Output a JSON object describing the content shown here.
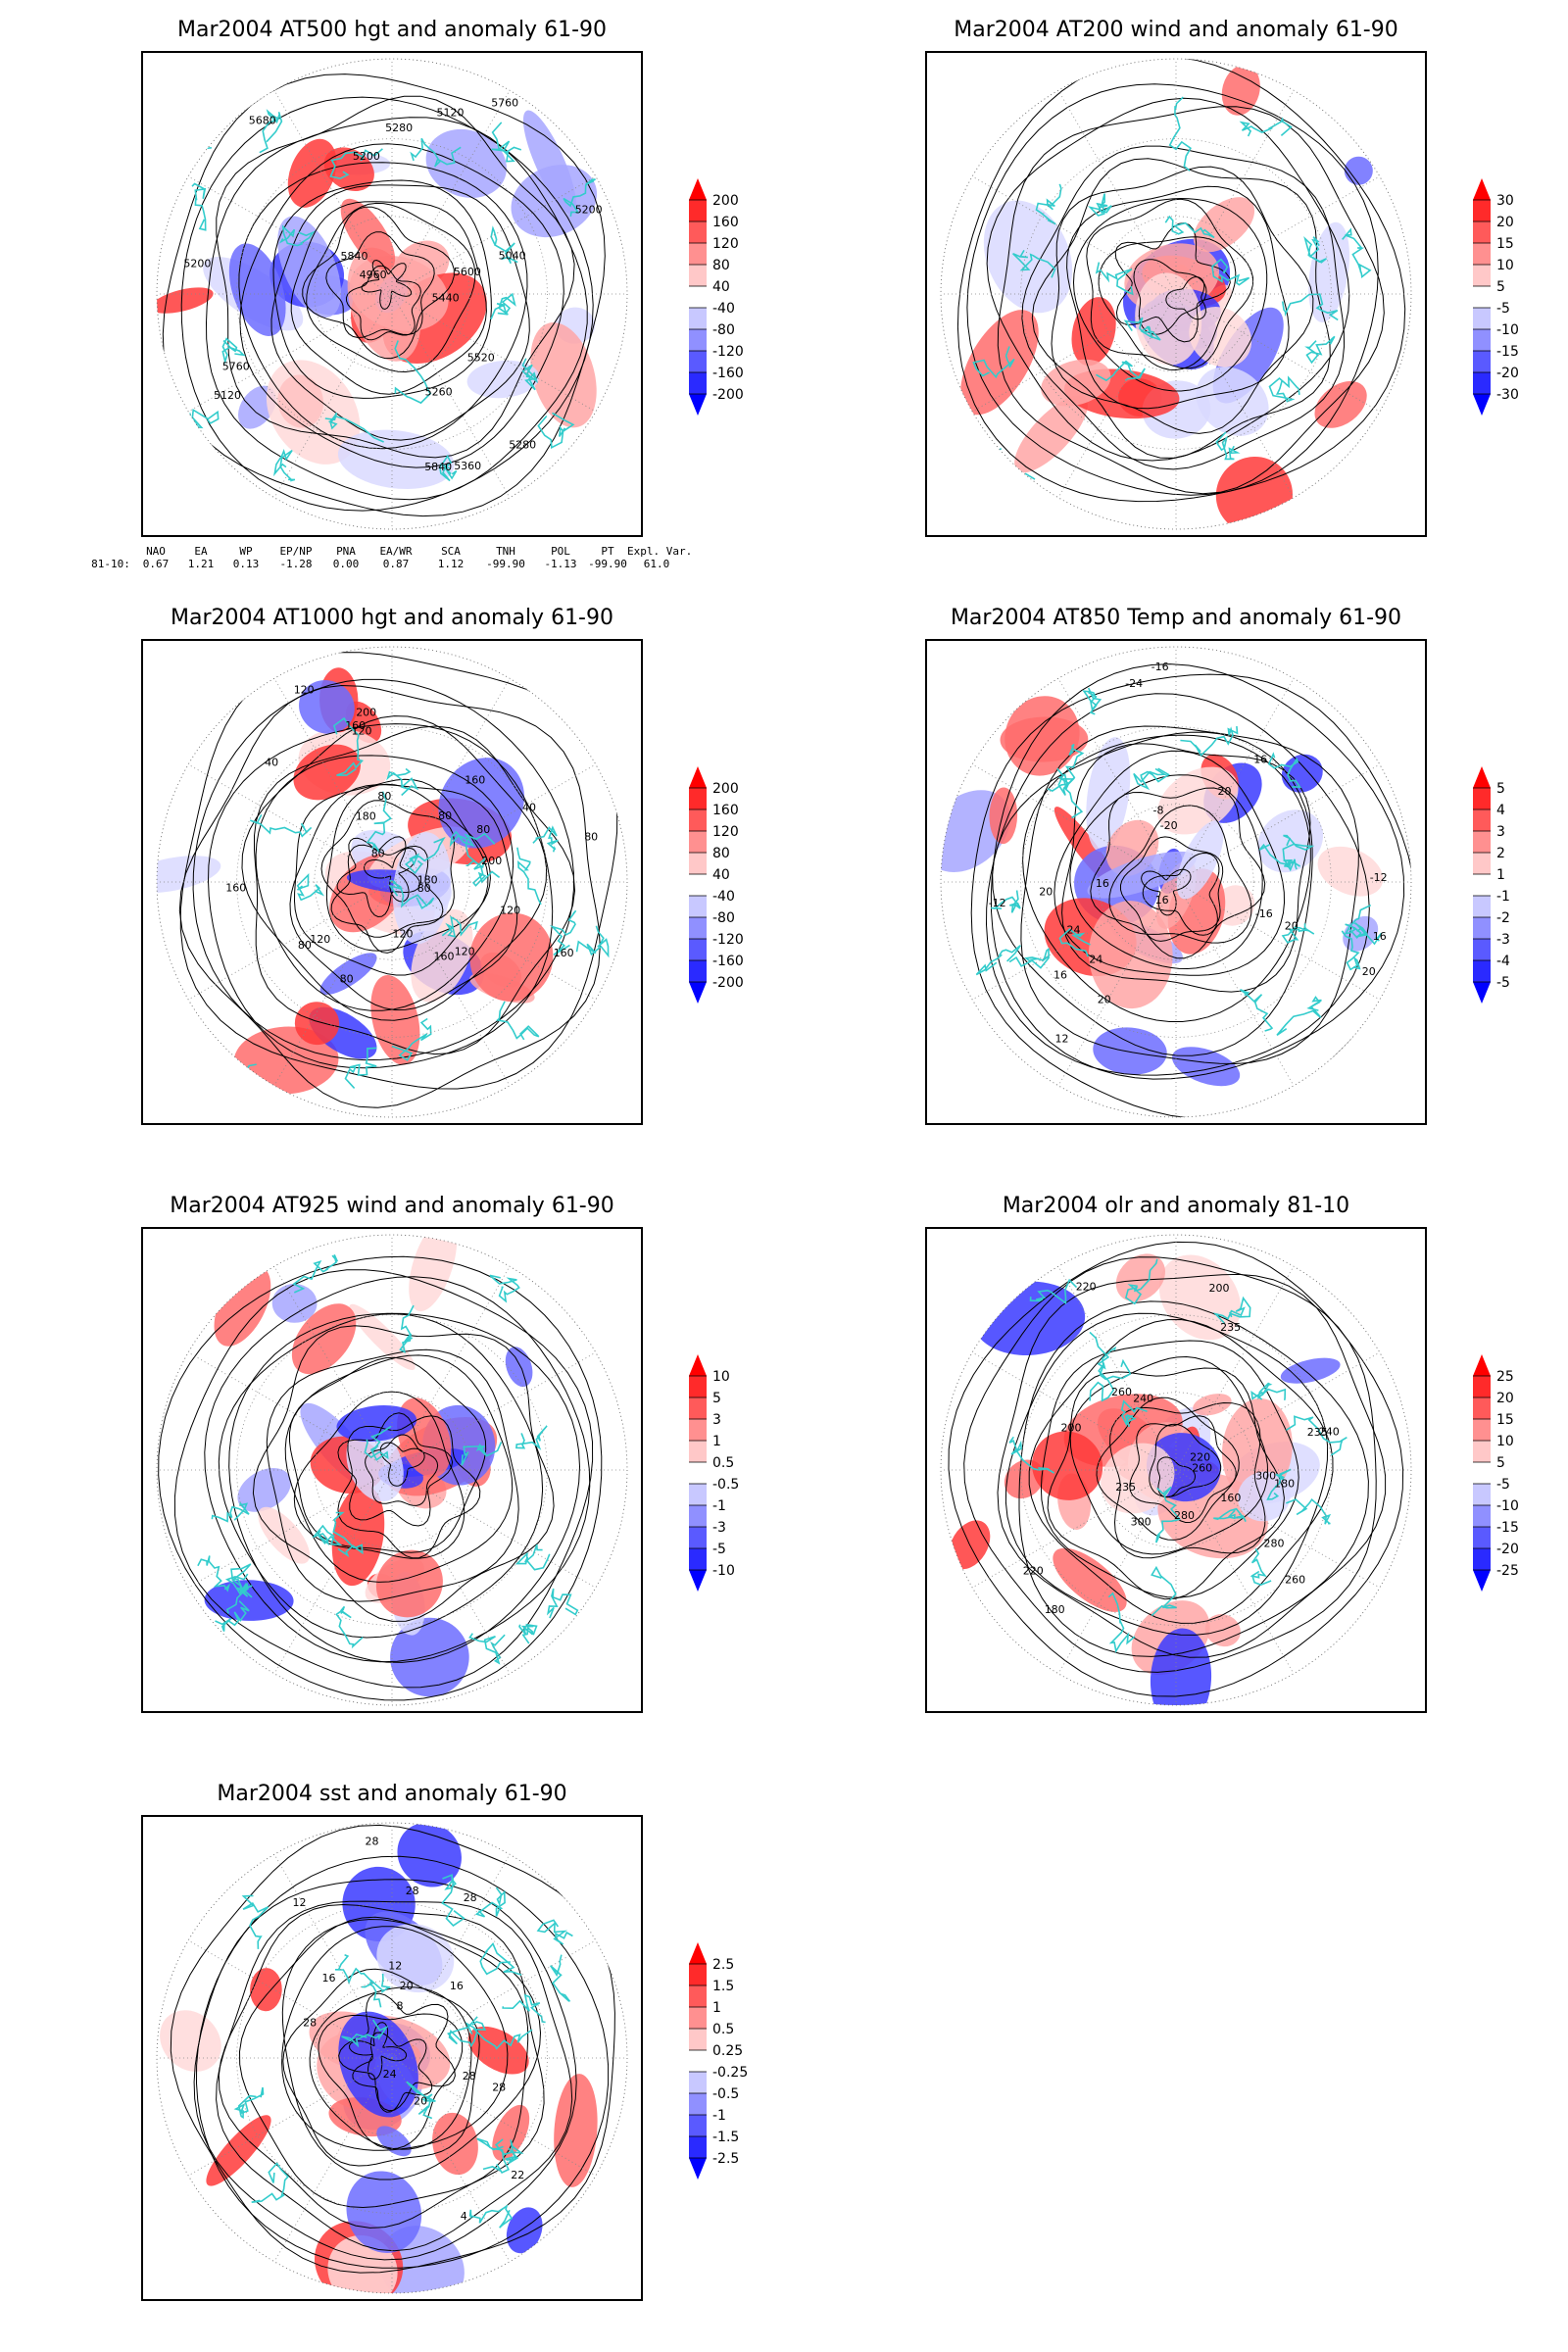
{
  "chart_data": [
    {
      "type": "map",
      "title": "Mar2004 AT500 hgt and anomaly 61-90",
      "contour_labels": [
        "5840",
        "5760",
        "5200",
        "5120",
        "5280",
        "5260",
        "5200",
        "5120",
        "4960",
        "5040",
        "5200",
        "5280",
        "5360",
        "5440",
        "5520",
        "5600",
        "5680",
        "5760",
        "5840"
      ],
      "colorbar": [
        "200",
        "160",
        "120",
        "80",
        "40",
        "-40",
        "-80",
        "-120",
        "-160",
        "-200"
      ],
      "index_table": {
        "headers": [
          "NAO",
          "EA",
          "WP",
          "EP/NP",
          "PNA",
          "EA/WR",
          "SCA",
          "TNH",
          "POL",
          "PT",
          "Expl. Var."
        ],
        "row_label": "81-10:",
        "values": [
          "0.67",
          "1.21",
          "0.13",
          "-1.28",
          "0.00",
          "0.87",
          "1.12",
          "-99.90",
          "-1.13",
          "-99.90",
          "61.0"
        ]
      }
    },
    {
      "type": "map",
      "title": "Mar2004 AT200 wind and anomaly 61-90",
      "colorbar": [
        "30",
        "20",
        "15",
        "10",
        "5",
        "-5",
        "-10",
        "-15",
        "-20",
        "-30"
      ]
    },
    {
      "type": "map",
      "title": "Mar2004 AT1000 hgt and anomaly 61-90",
      "contour_labels": [
        "80",
        "120",
        "80",
        "160",
        "200",
        "160",
        "180",
        "40",
        "120",
        "80",
        "160",
        "200",
        "120",
        "120",
        "80",
        "120",
        "40",
        "80",
        "160",
        "180",
        "120",
        "160",
        "80",
        "80",
        "80"
      ],
      "colorbar": [
        "200",
        "160",
        "120",
        "80",
        "40",
        "-40",
        "-80",
        "-120",
        "-160",
        "-200"
      ]
    },
    {
      "type": "map",
      "title": "Mar2004 AT850 Temp and anomaly 61-90",
      "contour_labels": [
        "16",
        "12",
        "16",
        "20",
        "-8",
        "-12",
        "-16",
        "-20",
        "-24",
        "-12",
        "-16",
        "16",
        "20",
        "20",
        "20",
        "16",
        "20",
        "24",
        "24",
        "16"
      ],
      "colorbar": [
        "5",
        "4",
        "3",
        "2",
        "1",
        "-1",
        "-2",
        "-3",
        "-4",
        "-5"
      ]
    },
    {
      "type": "map",
      "title": "Mar2004 AT925 wind and anomaly 61-90",
      "colorbar": [
        "10",
        "5",
        "3",
        "1",
        "0.5",
        "-0.5",
        "-1",
        "-3",
        "-5",
        "-10"
      ]
    },
    {
      "type": "map",
      "title": "Mar2004 olr and anomaly 81-10",
      "contour_labels": [
        "220",
        "235",
        "200",
        "180",
        "240",
        "260",
        "235",
        "220",
        "200",
        "180",
        "160",
        "280",
        "300",
        "235",
        "260",
        "280",
        "300",
        "220",
        "240",
        "260"
      ],
      "colorbar": [
        "25",
        "20",
        "15",
        "10",
        "5",
        "-5",
        "-10",
        "-15",
        "-20",
        "-25"
      ]
    },
    {
      "type": "map",
      "title": "Mar2004 sst and anomaly 61-90",
      "contour_labels": [
        "28",
        "24",
        "20",
        "16",
        "12",
        "8",
        "4",
        "28",
        "28",
        "28",
        "12",
        "16",
        "20",
        "22",
        "28",
        "28"
      ],
      "colorbar": [
        "2.5",
        "1.5",
        "1",
        "0.5",
        "0.25",
        "-0.25",
        "-0.5",
        "-1",
        "-1.5",
        "-2.5"
      ]
    }
  ],
  "colors": {
    "coast": "#33cccc",
    "red_scale": [
      "#ff0000",
      "#ff3a3a",
      "#ff6c6c",
      "#ffa6a6",
      "#ffd9d9"
    ],
    "blue_scale": [
      "#d9d9ff",
      "#a6a6ff",
      "#6c6cff",
      "#3a3aff",
      "#0000ff"
    ],
    "contour": "#000000"
  }
}
